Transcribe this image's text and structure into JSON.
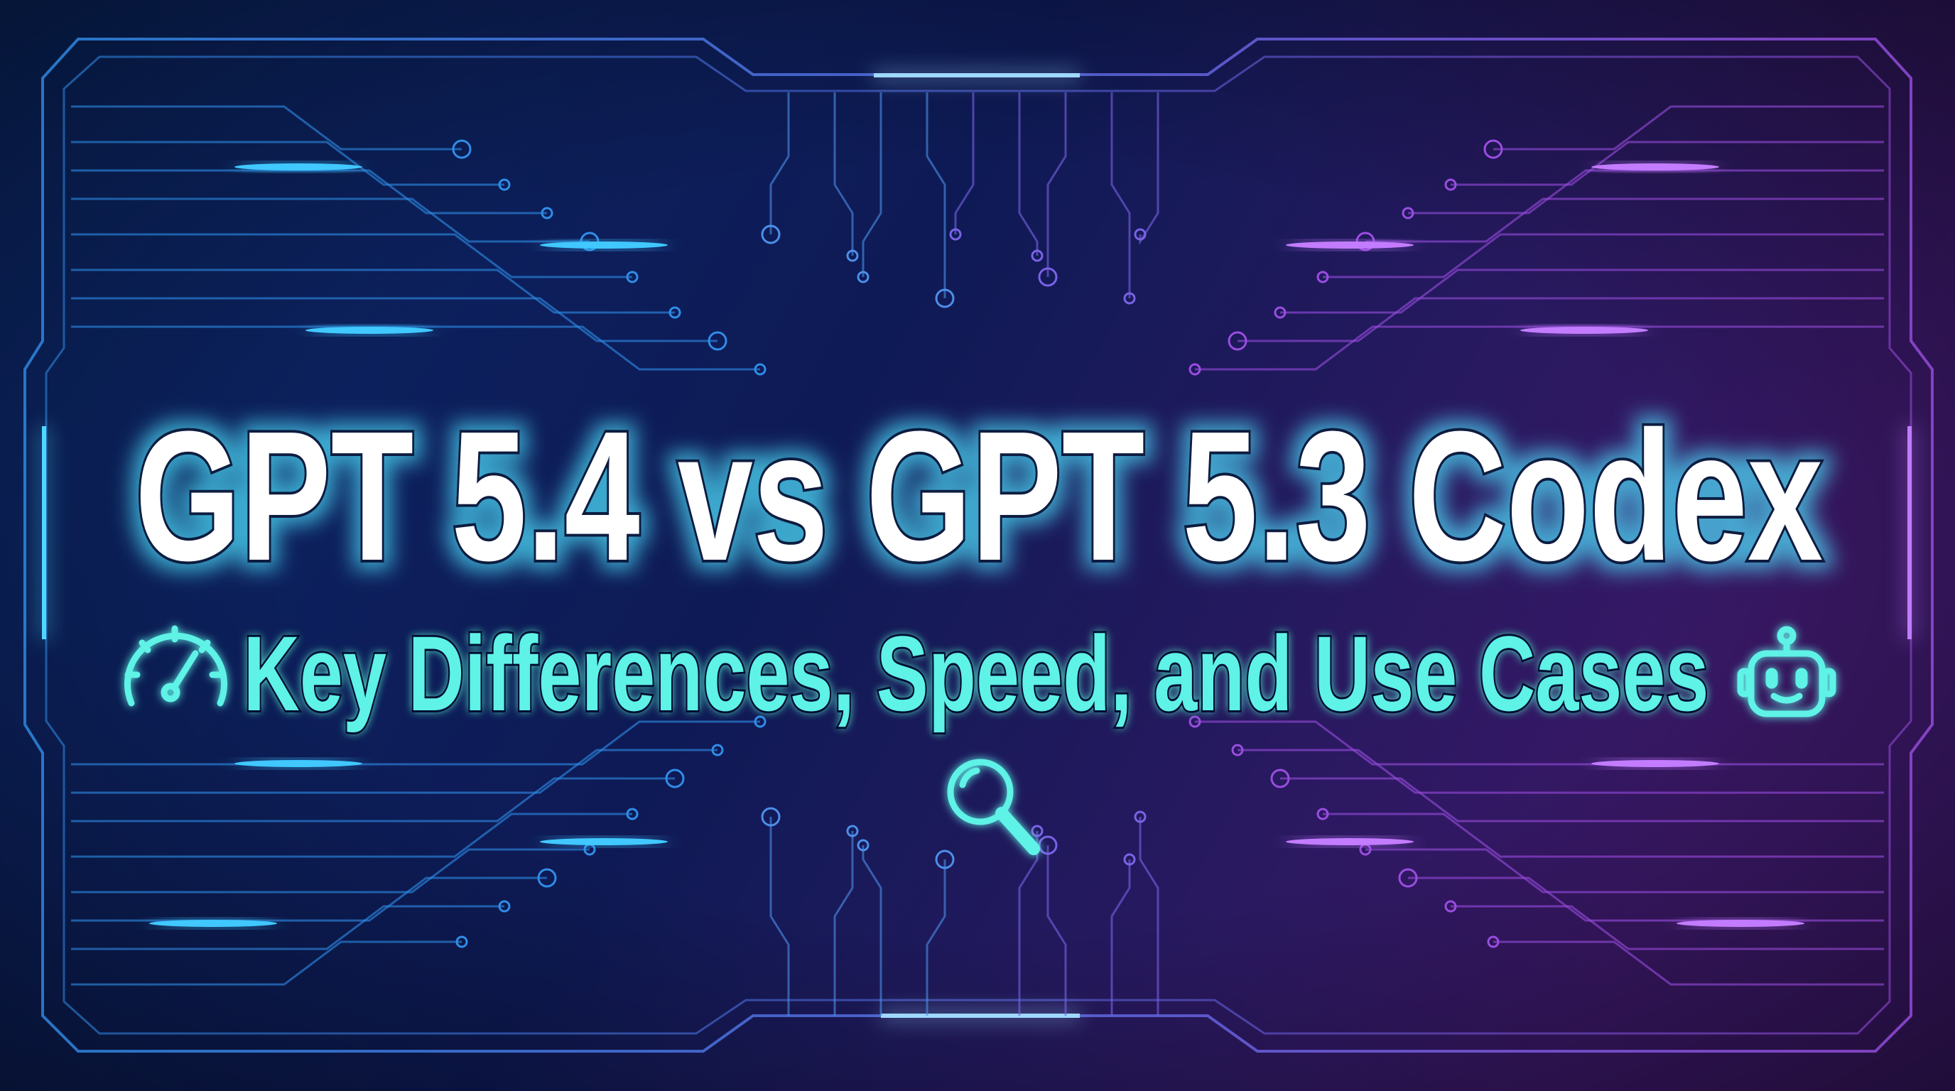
{
  "title": "GPT 5.4 vs GPT 5.3 Codex",
  "subtitle": "Key Differences, Speed, and Use Cases",
  "icons": {
    "left": "speedometer-icon",
    "right": "robot-icon",
    "bottom": "magnifying-glass-icon"
  },
  "colors": {
    "background_left": "#0b2a66",
    "background_right": "#3a1766",
    "title_fill": "#ffffff",
    "title_stroke": "#0a1a40",
    "title_glow": "#4fe3ff",
    "subtitle": "#5ef2e6",
    "circuit_left": "#2f8de8",
    "circuit_right": "#9a4de0"
  }
}
